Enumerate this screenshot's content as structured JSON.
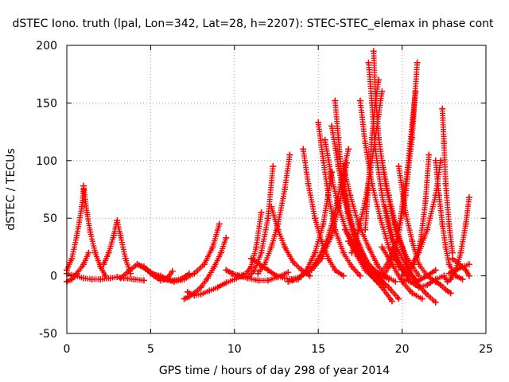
{
  "chart_data": {
    "type": "scatter",
    "title": "dSTEC Iono. truth (lpal, Lon=342, Lat=28, h=2207): STEC-STEC_elemax in phase cont",
    "xlabel": "GPS time / hours of day 298 of year 2014",
    "ylabel": "dSTEC  / TECUs",
    "xlim": [
      0,
      25
    ],
    "ylim": [
      -50,
      200
    ],
    "xticks": [
      0,
      5,
      10,
      15,
      20,
      25
    ],
    "yticks": [
      -50,
      0,
      50,
      100,
      150,
      200
    ],
    "grid": true,
    "marker": "+",
    "color": "#ff0000",
    "arcs": [
      {
        "t": [
          0.0,
          0.5,
          1.0,
          1.5,
          2.0,
          2.6,
          3.0,
          3.4,
          4.0,
          4.6
        ],
        "v": [
          2,
          0,
          -2,
          -3,
          -3,
          -2,
          -1,
          -2,
          -3,
          -4
        ]
      },
      {
        "t": [
          0.0,
          0.3,
          0.6,
          1.0,
          1.3
        ],
        "v": [
          -5,
          -3,
          2,
          10,
          20
        ]
      },
      {
        "t": [
          1.0,
          1.2,
          1.4,
          1.7,
          2.0,
          2.3
        ],
        "v": [
          78,
          55,
          38,
          20,
          8,
          0
        ]
      },
      {
        "t": [
          0.0,
          0.3,
          0.6,
          0.9,
          1.0
        ],
        "v": [
          5,
          15,
          35,
          60,
          75
        ]
      },
      {
        "t": [
          2.2,
          2.5,
          2.8,
          3.0,
          3.2,
          3.5,
          3.8
        ],
        "v": [
          10,
          20,
          35,
          48,
          35,
          15,
          2
        ]
      },
      {
        "t": [
          3.2,
          3.7,
          4.2,
          4.6,
          5.0,
          5.5,
          6.0
        ],
        "v": [
          -2,
          4,
          10,
          8,
          3,
          -1,
          -3
        ]
      },
      {
        "t": [
          4.2,
          4.7,
          5.2,
          5.6,
          6.0,
          6.3
        ],
        "v": [
          10,
          6,
          0,
          -4,
          -2,
          4
        ]
      },
      {
        "t": [
          5.0,
          5.6,
          6.2,
          6.8,
          7.3
        ],
        "v": [
          2,
          0,
          -4,
          -3,
          2
        ]
      },
      {
        "t": [
          5.8,
          6.4,
          7.0,
          7.6,
          8.2,
          8.7,
          9.1
        ],
        "v": [
          -3,
          -5,
          -3,
          2,
          10,
          25,
          45
        ]
      },
      {
        "t": [
          7.0,
          7.3,
          7.6,
          8.0,
          8.4,
          8.8,
          9.2,
          9.5
        ],
        "v": [
          -20,
          -18,
          -15,
          -10,
          -2,
          8,
          20,
          33
        ]
      },
      {
        "t": [
          7.2,
          7.6,
          8.0,
          8.5,
          9.0,
          9.5,
          10.0,
          10.5
        ],
        "v": [
          -14,
          -17,
          -16,
          -13,
          -10,
          -6,
          -3,
          0
        ]
      },
      {
        "t": [
          9.5,
          9.9,
          10.3,
          10.7,
          11.0,
          11.3,
          11.6
        ],
        "v": [
          5,
          2,
          0,
          2,
          8,
          25,
          55
        ]
      },
      {
        "t": [
          9.8,
          10.3,
          10.8,
          11.2,
          11.6,
          12.0,
          12.3
        ],
        "v": [
          2,
          0,
          -2,
          5,
          20,
          50,
          95
        ]
      },
      {
        "t": [
          10.2,
          10.8,
          11.4,
          12.0,
          12.6,
          13.2
        ],
        "v": [
          0,
          -2,
          -4,
          -4,
          -1,
          3
        ]
      },
      {
        "t": [
          11.0,
          11.5,
          12.0,
          12.5,
          13.0,
          13.4
        ],
        "v": [
          15,
          10,
          5,
          0,
          -2,
          -3
        ]
      },
      {
        "t": [
          12.2,
          12.6,
          13.0,
          13.5,
          14.0,
          14.5
        ],
        "v": [
          60,
          40,
          25,
          12,
          5,
          0
        ]
      },
      {
        "t": [
          11.4,
          11.8,
          12.2,
          12.6,
          13.0,
          13.3
        ],
        "v": [
          2,
          10,
          25,
          45,
          75,
          105
        ]
      },
      {
        "t": [
          13.2,
          13.8,
          14.3,
          14.8,
          15.3,
          15.8
        ],
        "v": [
          -5,
          -3,
          5,
          20,
          45,
          90
        ]
      },
      {
        "t": [
          14.1,
          14.4,
          14.8,
          15.2,
          15.6,
          16.0,
          16.5
        ],
        "v": [
          110,
          80,
          50,
          30,
          15,
          5,
          0
        ]
      },
      {
        "t": [
          15.0,
          15.3,
          15.6,
          16.0,
          16.5,
          17.0,
          17.5
        ],
        "v": [
          133,
          100,
          70,
          40,
          20,
          8,
          0
        ]
      },
      {
        "t": [
          15.4,
          15.8,
          16.2,
          16.7,
          17.2,
          17.8,
          18.3
        ],
        "v": [
          118,
          85,
          60,
          38,
          20,
          5,
          -2
        ]
      },
      {
        "t": [
          15.8,
          16.2,
          16.6,
          17.0,
          17.5,
          18.0,
          18.8
        ],
        "v": [
          130,
          95,
          70,
          45,
          25,
          8,
          -5
        ]
      },
      {
        "t": [
          13.5,
          14.0,
          14.6,
          15.2,
          15.8,
          16.3,
          16.7
        ],
        "v": [
          -3,
          0,
          5,
          15,
          35,
          65,
          98
        ]
      },
      {
        "t": [
          14.5,
          15.0,
          15.5,
          16.0,
          16.4,
          16.8
        ],
        "v": [
          5,
          15,
          30,
          55,
          85,
          110
        ]
      },
      {
        "t": [
          16.0,
          16.2,
          16.4,
          16.8,
          17.3,
          18.0,
          18.6
        ],
        "v": [
          152,
          120,
          85,
          55,
          30,
          10,
          0
        ]
      },
      {
        "t": [
          16.5,
          16.9,
          17.4,
          18.0,
          18.5,
          19.0,
          19.6
        ],
        "v": [
          95,
          70,
          45,
          25,
          10,
          0,
          -5
        ]
      },
      {
        "t": [
          16.2,
          16.8,
          17.4,
          18.0,
          18.6,
          19.2
        ],
        "v": [
          95,
          50,
          25,
          10,
          2,
          -3
        ]
      },
      {
        "t": [
          16.6,
          17.2,
          17.8,
          18.5,
          19.2,
          19.8
        ],
        "v": [
          40,
          25,
          10,
          0,
          -10,
          -20
        ]
      },
      {
        "t": [
          16.8,
          17.5,
          18.2,
          18.8,
          19.4
        ],
        "v": [
          30,
          15,
          0,
          -10,
          -22
        ]
      },
      {
        "t": [
          17.0,
          17.3,
          17.8,
          18.2,
          18.6,
          19.0
        ],
        "v": [
          40,
          20,
          8,
          0,
          -5,
          -8
        ]
      },
      {
        "t": [
          17.5,
          17.8,
          18.2,
          18.7,
          19.2,
          19.8,
          20.4
        ],
        "v": [
          152,
          115,
          80,
          50,
          25,
          8,
          0
        ]
      },
      {
        "t": [
          17.8,
          18.0,
          18.2,
          18.4,
          18.6
        ],
        "v": [
          40,
          80,
          120,
          150,
          170
        ]
      },
      {
        "t": [
          18.0,
          18.2,
          18.4,
          18.8,
          19.3,
          19.9,
          20.5
        ],
        "v": [
          185,
          150,
          110,
          70,
          35,
          10,
          0
        ]
      },
      {
        "t": [
          18.3,
          18.4,
          18.6,
          19.0,
          19.6,
          20.3,
          21.0
        ],
        "v": [
          195,
          160,
          120,
          80,
          40,
          15,
          0
        ]
      },
      {
        "t": [
          17.0,
          17.4,
          17.8,
          18.1,
          18.4,
          18.6,
          18.8
        ],
        "v": [
          20,
          40,
          65,
          90,
          120,
          140,
          160
        ]
      },
      {
        "t": [
          18.8,
          19.2,
          19.6,
          20.0,
          20.3,
          20.6,
          20.9
        ],
        "v": [
          100,
          70,
          45,
          25,
          10,
          0,
          -5
        ]
      },
      {
        "t": [
          18.5,
          18.9,
          19.3,
          19.8,
          20.3,
          20.8
        ],
        "v": [
          -5,
          0,
          10,
          40,
          90,
          160
        ]
      },
      {
        "t": [
          18.6,
          19.1,
          19.7,
          20.2,
          20.6,
          20.9
        ],
        "v": [
          0,
          10,
          30,
          70,
          120,
          185
        ]
      },
      {
        "t": [
          18.8,
          19.4,
          20.0,
          20.6,
          21.2
        ],
        "v": [
          25,
          10,
          -5,
          -15,
          -20
        ]
      },
      {
        "t": [
          19.0,
          19.5,
          20.2,
          20.8,
          21.4,
          22.0
        ],
        "v": [
          60,
          30,
          10,
          -5,
          -15,
          -23
        ]
      },
      {
        "t": [
          19.5,
          20.0,
          20.5,
          21.0,
          21.5,
          22.0,
          22.5
        ],
        "v": [
          20,
          5,
          -5,
          -10,
          -8,
          -3,
          0
        ]
      },
      {
        "t": [
          19.8,
          20.2,
          20.6,
          21.0,
          21.5,
          22.0
        ],
        "v": [
          95,
          55,
          30,
          10,
          0,
          -5
        ]
      },
      {
        "t": [
          20.0,
          20.5,
          21.0,
          21.5,
          22.0
        ],
        "v": [
          -3,
          -5,
          -4,
          0,
          5
        ]
      },
      {
        "t": [
          20.0,
          20.5,
          21.0,
          21.5,
          22.0,
          22.3
        ],
        "v": [
          0,
          8,
          20,
          40,
          70,
          100
        ]
      },
      {
        "t": [
          20.3,
          20.7,
          21.1,
          21.4,
          21.6
        ],
        "v": [
          0,
          10,
          30,
          65,
          105
        ]
      },
      {
        "t": [
          22.0,
          22.2,
          22.4,
          22.6,
          22.8,
          23.2,
          23.6
        ],
        "v": [
          100,
          70,
          45,
          25,
          10,
          0,
          -3
        ]
      },
      {
        "t": [
          22.4,
          22.5,
          22.6,
          22.8,
          23.0
        ],
        "v": [
          145,
          115,
          80,
          45,
          20
        ]
      },
      {
        "t": [
          22.5,
          22.7,
          22.9,
          23.2,
          23.5,
          23.8,
          24.0
        ],
        "v": [
          0,
          -5,
          -3,
          5,
          20,
          45,
          68
        ]
      },
      {
        "t": [
          22.8,
          23.2,
          23.6,
          24.0
        ],
        "v": [
          2,
          5,
          8,
          10
        ]
      },
      {
        "t": [
          22.0,
          22.3,
          22.6,
          22.9
        ],
        "v": [
          -5,
          -8,
          -12,
          -15
        ]
      },
      {
        "t": [
          23.0,
          23.4,
          23.8,
          24.0
        ],
        "v": [
          15,
          10,
          5,
          0
        ]
      }
    ]
  }
}
